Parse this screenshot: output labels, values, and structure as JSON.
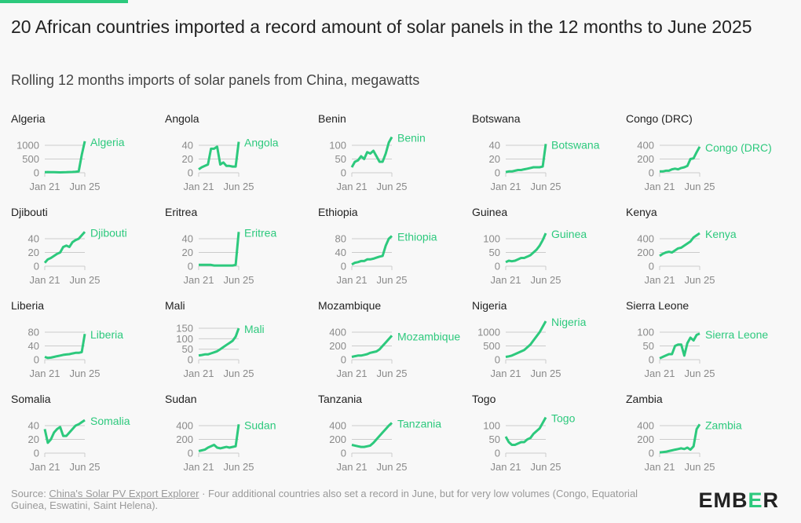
{
  "title": "20 African countries imported a record amount of solar panels in the 12 months to June 2025",
  "subtitle": "Rolling 12 months imports of solar panels from China, megawatts",
  "footer": {
    "source_prefix": "Source: ",
    "source_link": "China's Solar PV Export Explorer",
    "note": " · Four additional countries also set a record in June, but for very low volumes (Congo, Equatorial Guinea, Eswatini, Saint Helena).",
    "logo_left": "EMB",
    "logo_mid": "E",
    "logo_right": "R"
  },
  "colors": {
    "line": "#2dc97d",
    "grid": "#cccccc",
    "tick": "#8a8a8a"
  },
  "chart_data": {
    "type": "line",
    "x_range": [
      "Jan 21",
      "Jun 25"
    ],
    "x_ticks": [
      "Jan 21",
      "Jun 25"
    ],
    "unit": "MW",
    "panels": [
      {
        "country": "Algeria",
        "ticks": [
          0,
          500,
          1000
        ],
        "values": [
          20,
          25,
          22,
          20,
          18,
          15,
          18,
          20,
          25,
          30,
          35,
          50,
          650,
          1150
        ]
      },
      {
        "country": "Angola",
        "ticks": [
          0,
          20,
          40
        ],
        "values": [
          5,
          8,
          10,
          12,
          35,
          35,
          38,
          12,
          15,
          10,
          10,
          9,
          9,
          45
        ]
      },
      {
        "country": "Benin",
        "ticks": [
          0,
          50,
          100
        ],
        "values": [
          20,
          40,
          45,
          60,
          50,
          75,
          70,
          80,
          60,
          40,
          40,
          70,
          110,
          130
        ]
      },
      {
        "country": "Botswana",
        "ticks": [
          0,
          20,
          40
        ],
        "values": [
          1,
          2,
          2,
          3,
          4,
          4,
          5,
          6,
          7,
          8,
          8,
          8,
          9,
          42
        ]
      },
      {
        "country": "Congo (DRC)",
        "ticks": [
          0,
          200,
          400
        ],
        "values": [
          20,
          20,
          30,
          30,
          50,
          60,
          50,
          70,
          80,
          100,
          200,
          210,
          300,
          380
        ]
      },
      {
        "country": "Djibouti",
        "ticks": [
          0,
          20,
          40
        ],
        "values": [
          5,
          10,
          12,
          15,
          18,
          20,
          28,
          30,
          28,
          35,
          38,
          40,
          45,
          50
        ]
      },
      {
        "country": "Eritrea",
        "ticks": [
          0,
          20,
          40
        ],
        "values": [
          2,
          2,
          2,
          2,
          2,
          1,
          1,
          1,
          1,
          1,
          1,
          1,
          2,
          50
        ]
      },
      {
        "country": "Ethiopia",
        "ticks": [
          0,
          40,
          80
        ],
        "values": [
          5,
          10,
          12,
          15,
          15,
          20,
          20,
          22,
          25,
          28,
          30,
          60,
          80,
          88
        ]
      },
      {
        "country": "Guinea",
        "ticks": [
          0,
          50,
          100
        ],
        "values": [
          15,
          20,
          18,
          20,
          25,
          30,
          30,
          35,
          40,
          50,
          60,
          75,
          95,
          120
        ]
      },
      {
        "country": "Kenya",
        "ticks": [
          0,
          200,
          400
        ],
        "values": [
          150,
          180,
          200,
          210,
          200,
          230,
          260,
          270,
          300,
          330,
          360,
          420,
          450,
          480
        ]
      },
      {
        "country": "Liberia",
        "ticks": [
          0,
          40,
          80
        ],
        "values": [
          8,
          5,
          6,
          8,
          10,
          12,
          14,
          15,
          16,
          18,
          20,
          20,
          22,
          75
        ]
      },
      {
        "country": "Mali",
        "ticks": [
          0,
          50,
          100,
          150
        ],
        "values": [
          20,
          22,
          25,
          25,
          30,
          35,
          40,
          50,
          60,
          70,
          80,
          90,
          110,
          150
        ]
      },
      {
        "country": "Mozambique",
        "ticks": [
          0,
          200,
          400
        ],
        "values": [
          40,
          50,
          60,
          60,
          70,
          80,
          100,
          110,
          120,
          150,
          200,
          250,
          300,
          350
        ]
      },
      {
        "country": "Nigeria",
        "ticks": [
          0,
          500,
          1000
        ],
        "values": [
          100,
          120,
          150,
          200,
          250,
          300,
          350,
          450,
          550,
          700,
          850,
          1000,
          1200,
          1400
        ]
      },
      {
        "country": "Sierra Leone",
        "ticks": [
          0,
          50,
          100
        ],
        "values": [
          5,
          10,
          15,
          20,
          20,
          50,
          55,
          55,
          15,
          60,
          80,
          70,
          90,
          95
        ]
      },
      {
        "country": "Somalia",
        "ticks": [
          0,
          20,
          40
        ],
        "values": [
          35,
          15,
          20,
          30,
          35,
          38,
          25,
          25,
          30,
          35,
          40,
          42,
          45,
          48
        ]
      },
      {
        "country": "Sudan",
        "ticks": [
          0,
          200,
          400
        ],
        "values": [
          30,
          40,
          50,
          80,
          100,
          120,
          80,
          70,
          80,
          90,
          80,
          90,
          100,
          420
        ]
      },
      {
        "country": "Tanzania",
        "ticks": [
          0,
          200,
          400
        ],
        "values": [
          120,
          110,
          100,
          90,
          90,
          100,
          110,
          150,
          200,
          250,
          300,
          350,
          400,
          440
        ]
      },
      {
        "country": "Togo",
        "ticks": [
          0,
          50,
          100
        ],
        "values": [
          60,
          40,
          30,
          30,
          35,
          40,
          40,
          50,
          55,
          70,
          80,
          90,
          110,
          130
        ]
      },
      {
        "country": "Zambia",
        "ticks": [
          0,
          200,
          400
        ],
        "values": [
          10,
          15,
          20,
          30,
          40,
          50,
          60,
          70,
          60,
          80,
          50,
          100,
          350,
          420
        ]
      }
    ]
  }
}
